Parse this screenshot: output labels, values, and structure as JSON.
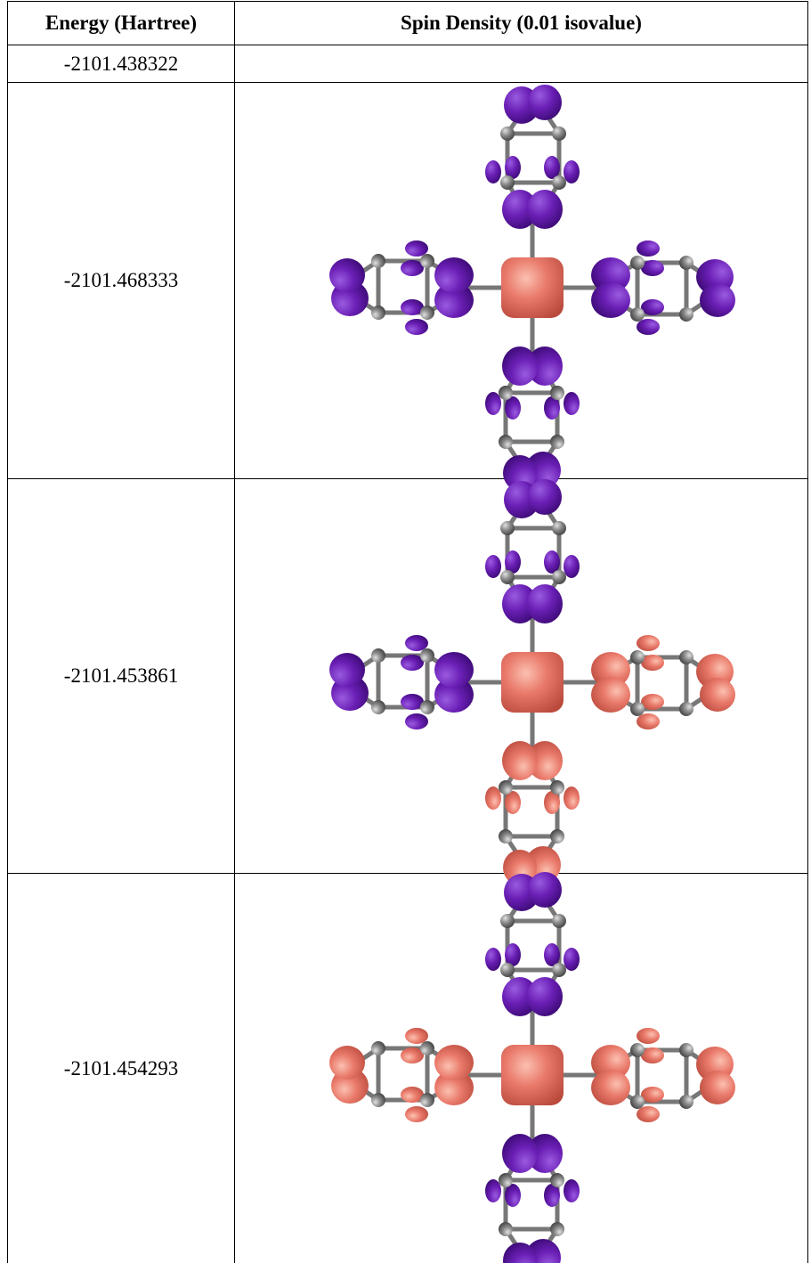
{
  "table": {
    "headers": [
      "Energy (Hartree)",
      "Spin Density (0.01 isovalue)"
    ],
    "rows": [
      {
        "energy": "-2101.438322"
      },
      {
        "energy": "-2101.468333"
      },
      {
        "energy": "-2101.453861"
      },
      {
        "energy": "-2101.454293"
      }
    ]
  }
}
